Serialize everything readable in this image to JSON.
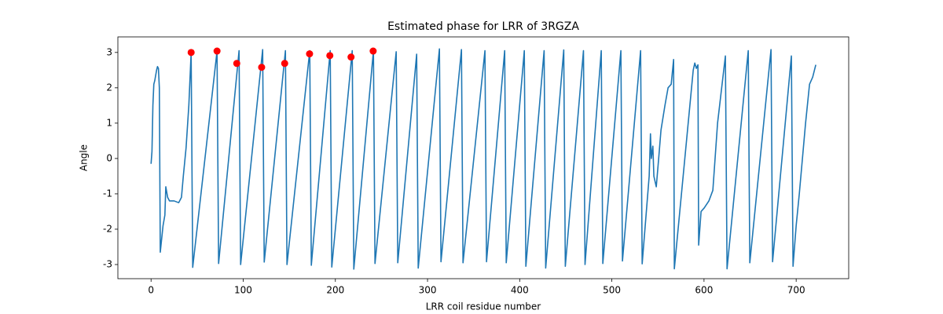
{
  "chart_data": {
    "type": "line",
    "title": "Estimated phase for LRR of 3RGZA",
    "x_label": "LRR coil residue number",
    "y_label": "Angle",
    "xlim": [
      -36,
      757
    ],
    "ylim": [
      -3.4,
      3.44
    ],
    "xticks": [
      0,
      100,
      200,
      300,
      400,
      500,
      600,
      700
    ],
    "yticks": [
      -3,
      -2,
      -1,
      0,
      1,
      2,
      3
    ],
    "series": [
      {
        "type": "line",
        "color": "#1f77b4",
        "x": [
          0,
          1,
          2,
          3,
          4,
          6,
          7,
          8,
          9,
          10,
          13,
          15,
          16,
          18,
          20,
          25,
          30,
          33,
          35,
          38,
          41,
          43.5,
          45.2,
          71.6,
          73.3,
          95.5,
          97.2,
          121.1,
          122.8,
          145.8,
          147.5,
          172.2,
          173.9,
          194.4,
          196.1,
          218.3,
          220.0,
          241.3,
          243.0,
          266.0,
          267.7,
          288.2,
          289.9,
          312.9,
          314.6,
          336.8,
          338.5,
          362.3,
          364.0,
          383.7,
          385.4,
          405.0,
          406.7,
          426.5,
          428.2,
          447.8,
          449.5,
          469.2,
          470.9,
          488.5,
          490.2,
          509.8,
          511.5,
          531.2,
          532.9,
          540.5,
          541.9,
          542.8,
          544.5,
          545.6,
          548.2,
          550.8,
          553.3,
          557.6,
          561.0,
          564.4,
          567.0,
          567.8,
          588.3,
          590.0,
          591.7,
          593.4,
          594.2,
          596.8,
          600.2,
          605.3,
          609.6,
          614.7,
          623.2,
          625.0,
          648.0,
          649.7,
          672.7,
          674.4,
          694.8,
          696.6,
          700,
          703.4,
          710.2,
          714.5,
          717.9,
          721.3
        ],
        "values": [
          -0.15,
          0.2,
          1.5,
          2.1,
          2.2,
          2.5,
          2.6,
          2.55,
          2.0,
          -2.65,
          -1.9,
          -1.6,
          -0.8,
          -1.1,
          -1.2,
          -1.2,
          -1.25,
          -1.1,
          -0.5,
          0.3,
          1.5,
          3.0,
          -3.08,
          3.04,
          -2.97,
          3.05,
          -3.0,
          3.08,
          -2.93,
          3.05,
          -3.0,
          3.05,
          -3.02,
          3.05,
          -3.07,
          3.05,
          -3.13,
          3.05,
          -2.97,
          3.02,
          -2.95,
          2.95,
          -3.1,
          3.1,
          -2.92,
          3.08,
          -2.95,
          3.05,
          -2.92,
          3.05,
          -2.95,
          3.05,
          -3.05,
          3.05,
          -3.1,
          3.07,
          -3.05,
          3.05,
          -3.0,
          3.05,
          -2.97,
          3.05,
          -2.9,
          3.05,
          -2.98,
          -0.5,
          0.7,
          0,
          0.35,
          -0.5,
          -0.8,
          0,
          0.8,
          1.5,
          2.0,
          2.1,
          2.8,
          -3.12,
          2.5,
          2.7,
          2.55,
          2.65,
          -2.45,
          -1.5,
          -1.4,
          -1.2,
          -0.9,
          1.0,
          2.9,
          -3.12,
          3.05,
          -2.95,
          3.08,
          -2.92,
          2.9,
          -3.05,
          -1.9,
          -1.0,
          1.0,
          2.1,
          2.3,
          2.65
        ]
      },
      {
        "type": "scatter",
        "color": "#ff0000",
        "x": [
          43.5,
          71.6,
          93,
          120,
          145,
          172,
          194,
          217,
          241
        ],
        "values": [
          3.0,
          3.04,
          2.69,
          2.58,
          2.69,
          2.96,
          2.91,
          2.87,
          3.04
        ]
      }
    ]
  }
}
